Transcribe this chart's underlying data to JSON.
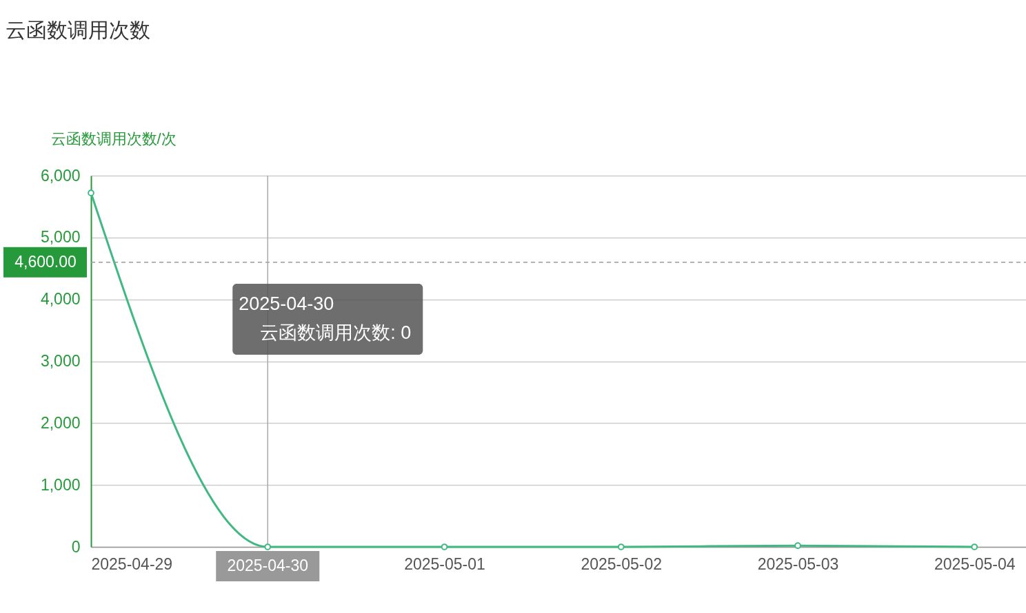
{
  "chart_data": {
    "type": "line",
    "title": "云函数调用次数",
    "ylabel": "云函数调用次数/次",
    "x": [
      "2025-04-29",
      "2025-04-30",
      "2025-05-01",
      "2025-05-02",
      "2025-05-03",
      "2025-05-04"
    ],
    "series": [
      {
        "color": "#41b883",
        "values": [
          5720,
          0,
          0,
          0,
          20,
          0
        ]
      }
    ],
    "xlim": [
      "2025-04-29",
      "2025-05-04T07:00"
    ],
    "xticks": [
      "2025-04-29",
      "2025-04-30",
      "2025-05-01",
      "2025-05-02",
      "2025-05-03",
      "2025-05-04"
    ],
    "ylim": [
      0,
      6000
    ],
    "yticks": [
      0,
      {
        "value": 1000,
        "label": "1,000"
      },
      {
        "value": 2000,
        "label": "2,000"
      },
      {
        "value": 3000,
        "label": "3,000"
      },
      {
        "value": 4000,
        "label": "4,000"
      },
      {
        "value": 5000,
        "label": "5,000"
      },
      {
        "value": 6000,
        "label": "6,000"
      }
    ],
    "grid": "y",
    "marker": "circle",
    "line_style": "solid",
    "ref_lines": [
      {
        "axis": "y",
        "value": 4600,
        "label": "4,600.00",
        "color": "#999999",
        "line_style": "dashed"
      },
      {
        "axis": "x",
        "value": "2025-04-30",
        "label": "2025-04-30",
        "color": "#aaaaaa",
        "line_style": "solid"
      }
    ],
    "annotations": [
      "2025-04-30",
      "云函数调用次数: 0"
    ]
  }
}
